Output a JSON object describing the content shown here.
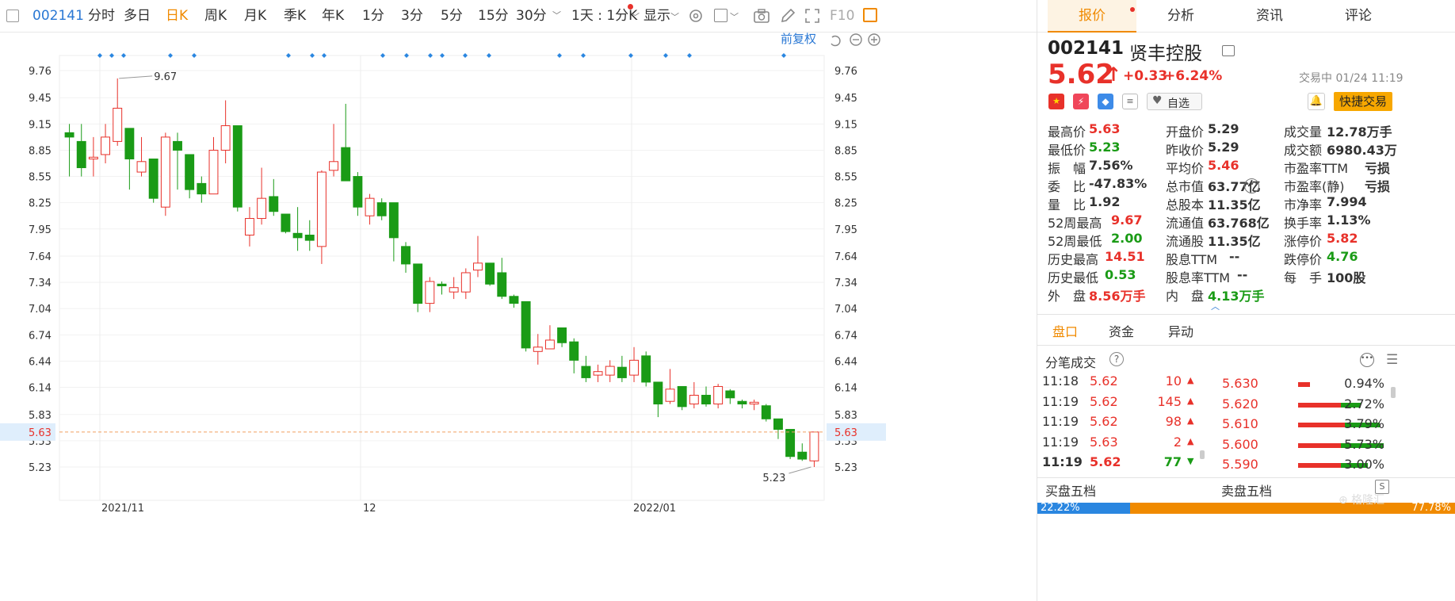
{
  "toolbar": {
    "code": "002141",
    "timeframes": [
      "分时",
      "多日",
      "日K",
      "周K",
      "月K",
      "季K",
      "年K",
      "1分",
      "3分",
      "5分",
      "15分",
      "30分"
    ],
    "active": "日K",
    "period_select": "1天 : 1分K",
    "display": "显示",
    "f10": "F10"
  },
  "chart": {
    "adjust": "前复权",
    "current_price": "5.63",
    "high_label": "9.67",
    "low_label": "5.23",
    "y_ticks": [
      "9.76",
      "9.45",
      "9.15",
      "8.85",
      "8.55",
      "8.25",
      "7.95",
      "7.64",
      "7.34",
      "7.04",
      "6.74",
      "6.44",
      "6.14",
      "5.83",
      "5.53",
      "5.23"
    ]
  },
  "chart_data": {
    "type": "candlestick",
    "x_labels": [
      "2021/11",
      "12",
      "2022/01"
    ],
    "ylim": [
      5.0,
      10.0
    ],
    "up_color": "#e8312a",
    "down_color": "#1a9b16",
    "candles": [
      [
        9.05,
        9.0,
        9.15,
        8.55
      ],
      [
        8.95,
        8.65,
        9.15,
        8.55
      ],
      [
        8.75,
        8.77,
        9.0,
        8.55
      ],
      [
        8.8,
        9.0,
        9.15,
        8.7
      ],
      [
        8.95,
        9.33,
        9.67,
        8.9
      ],
      [
        9.1,
        8.75,
        9.1,
        8.4
      ],
      [
        8.6,
        8.72,
        9.0,
        8.55
      ],
      [
        8.75,
        8.3,
        8.75,
        8.25
      ],
      [
        8.2,
        9.0,
        9.05,
        8.1
      ],
      [
        8.95,
        8.85,
        9.05,
        8.4
      ],
      [
        8.8,
        8.4,
        8.8,
        8.3
      ],
      [
        8.47,
        8.35,
        8.55,
        8.25
      ],
      [
        8.35,
        8.85,
        9.0,
        8.35
      ],
      [
        8.85,
        9.13,
        9.42,
        8.7
      ],
      [
        9.13,
        8.2,
        9.13,
        8.15
      ],
      [
        7.88,
        8.07,
        8.2,
        7.75
      ],
      [
        8.07,
        8.3,
        8.65,
        8.0
      ],
      [
        8.32,
        8.15,
        8.52,
        8.1
      ],
      [
        8.12,
        7.92,
        8.12,
        7.9
      ],
      [
        7.9,
        7.85,
        8.2,
        7.7
      ],
      [
        7.88,
        7.82,
        8.05,
        7.7
      ],
      [
        7.75,
        8.6,
        8.62,
        7.55
      ],
      [
        8.62,
        8.72,
        9.15,
        8.55
      ],
      [
        8.88,
        8.5,
        9.38,
        8.5
      ],
      [
        8.55,
        8.2,
        8.6,
        8.1
      ],
      [
        8.1,
        8.3,
        8.35,
        8.0
      ],
      [
        8.25,
        8.1,
        8.3,
        8.05
      ],
      [
        8.25,
        7.85,
        8.25,
        7.58
      ],
      [
        7.75,
        7.55,
        7.8,
        7.45
      ],
      [
        7.55,
        7.1,
        7.55,
        7.0
      ],
      [
        7.1,
        7.35,
        7.4,
        7.0
      ],
      [
        7.32,
        7.3,
        7.35,
        7.2
      ],
      [
        7.23,
        7.28,
        7.4,
        7.15
      ],
      [
        7.23,
        7.45,
        7.5,
        7.15
      ],
      [
        7.48,
        7.56,
        7.87,
        7.4
      ],
      [
        7.56,
        7.32,
        7.56,
        7.3
      ],
      [
        7.45,
        7.18,
        7.62,
        7.15
      ],
      [
        7.18,
        7.1,
        7.2,
        7.05
      ],
      [
        7.12,
        6.59,
        7.12,
        6.55
      ],
      [
        6.55,
        6.6,
        6.75,
        6.4
      ],
      [
        6.58,
        6.68,
        6.85,
        6.6
      ],
      [
        6.82,
        6.65,
        6.82,
        6.6
      ],
      [
        6.66,
        6.45,
        6.7,
        6.3
      ],
      [
        6.38,
        6.25,
        6.5,
        6.2
      ],
      [
        6.28,
        6.32,
        6.4,
        6.2
      ],
      [
        6.28,
        6.38,
        6.45,
        6.2
      ],
      [
        6.37,
        6.25,
        6.5,
        6.2
      ],
      [
        6.28,
        6.45,
        6.6,
        6.2
      ],
      [
        6.5,
        6.2,
        6.55,
        6.15
      ],
      [
        6.2,
        5.95,
        6.2,
        5.8
      ],
      [
        5.98,
        6.12,
        6.35,
        5.95
      ],
      [
        6.15,
        5.92,
        6.15,
        5.88
      ],
      [
        5.95,
        6.05,
        6.2,
        5.9
      ],
      [
        6.05,
        5.95,
        6.15,
        5.92
      ],
      [
        5.95,
        6.15,
        6.18,
        5.9
      ],
      [
        6.1,
        6.02,
        6.12,
        5.95
      ],
      [
        5.98,
        5.95,
        6.0,
        5.9
      ],
      [
        5.95,
        5.97,
        6.0,
        5.88
      ],
      [
        5.93,
        5.78,
        5.95,
        5.75
      ],
      [
        5.78,
        5.66,
        5.78,
        5.55
      ],
      [
        5.66,
        5.35,
        5.66,
        5.32
      ],
      [
        5.4,
        5.32,
        5.5,
        5.3
      ],
      [
        5.3,
        5.63,
        5.63,
        5.23
      ]
    ]
  },
  "panel": {
    "code": "002141",
    "name": "贤丰控股",
    "tabs": [
      "报价",
      "分析",
      "资讯",
      "评论"
    ],
    "price": "5.62",
    "change": "+0.33",
    "change_pct": "+6.24%",
    "status": "交易中 01/24 11:19",
    "watch": "自选",
    "quick_trade": "快捷交易",
    "stats": [
      [
        [
          "最高价",
          "5.63",
          "red"
        ],
        [
          "开盘价",
          "5.29",
          "blk"
        ],
        [
          "成交量",
          "12.78万手",
          "blk"
        ]
      ],
      [
        [
          "最低价",
          "5.23",
          "grn"
        ],
        [
          "昨收价",
          "5.29",
          "blk"
        ],
        [
          "成交额",
          "6980.43万",
          "blk"
        ]
      ],
      [
        [
          "振　幅",
          "7.56%",
          "blk"
        ],
        [
          "平均价",
          "5.46",
          "red"
        ],
        [
          "市盈率TTM",
          "亏损",
          "blk"
        ]
      ],
      [
        [
          "委　比",
          "-47.83%",
          "blk"
        ],
        [
          "总市值",
          "63.77亿",
          "blk"
        ],
        [
          "市盈率(静)",
          "亏损",
          "blk"
        ]
      ],
      [
        [
          "量　比",
          "1.92",
          "blk"
        ],
        [
          "总股本",
          "11.35亿",
          "blk"
        ],
        [
          "市净率",
          "7.994",
          "blk"
        ]
      ],
      [
        [
          "52周最高",
          "9.67",
          "red"
        ],
        [
          "流通值",
          "63.768亿",
          "blk"
        ],
        [
          "换手率",
          "1.13%",
          "blk"
        ]
      ],
      [
        [
          "52周最低",
          "2.00",
          "grn"
        ],
        [
          "流通股",
          "11.35亿",
          "blk"
        ],
        [
          "涨停价",
          "5.82",
          "red"
        ]
      ],
      [
        [
          "历史最高",
          "14.51",
          "red"
        ],
        [
          "股息TTM",
          "--",
          "blk"
        ],
        [
          "跌停价",
          "4.76",
          "grn"
        ]
      ],
      [
        [
          "历史最低",
          "0.53",
          "grn"
        ],
        [
          "股息率TTM",
          "--",
          "blk"
        ],
        [
          "每　手",
          "100股",
          "blk"
        ]
      ],
      [
        [
          "外　盘",
          "8.56万手",
          "red"
        ],
        [
          "内　盘",
          "4.13万手",
          "grn"
        ],
        [
          "",
          "",
          " blk"
        ]
      ]
    ],
    "subtabs": [
      "盘口",
      "资金",
      "异动"
    ],
    "ticks_title": "分笔成交",
    "ticks": [
      [
        "11:18",
        "5.62",
        "10",
        "up"
      ],
      [
        "11:19",
        "5.62",
        "145",
        "up"
      ],
      [
        "11:19",
        "5.62",
        "98",
        "up"
      ],
      [
        "11:19",
        "5.63",
        "2",
        "up"
      ],
      [
        "11:19",
        "5.62",
        "77",
        "down"
      ]
    ],
    "dist": [
      [
        "5.630",
        "0.94%",
        0.15,
        0
      ],
      [
        "5.620",
        "2.72%",
        0.55,
        0.25
      ],
      [
        "5.610",
        "3.79%",
        0.6,
        0.45
      ],
      [
        "5.600",
        "5.73%",
        0.55,
        0.55
      ],
      [
        "5.590",
        "3.00%",
        0.55,
        0.35
      ]
    ],
    "buy5": "买盘五档",
    "sell5": "卖盘五档",
    "buy_pct": "22.22%",
    "sell_pct": "77.78%",
    "buy_ratio": 0.2222
  }
}
